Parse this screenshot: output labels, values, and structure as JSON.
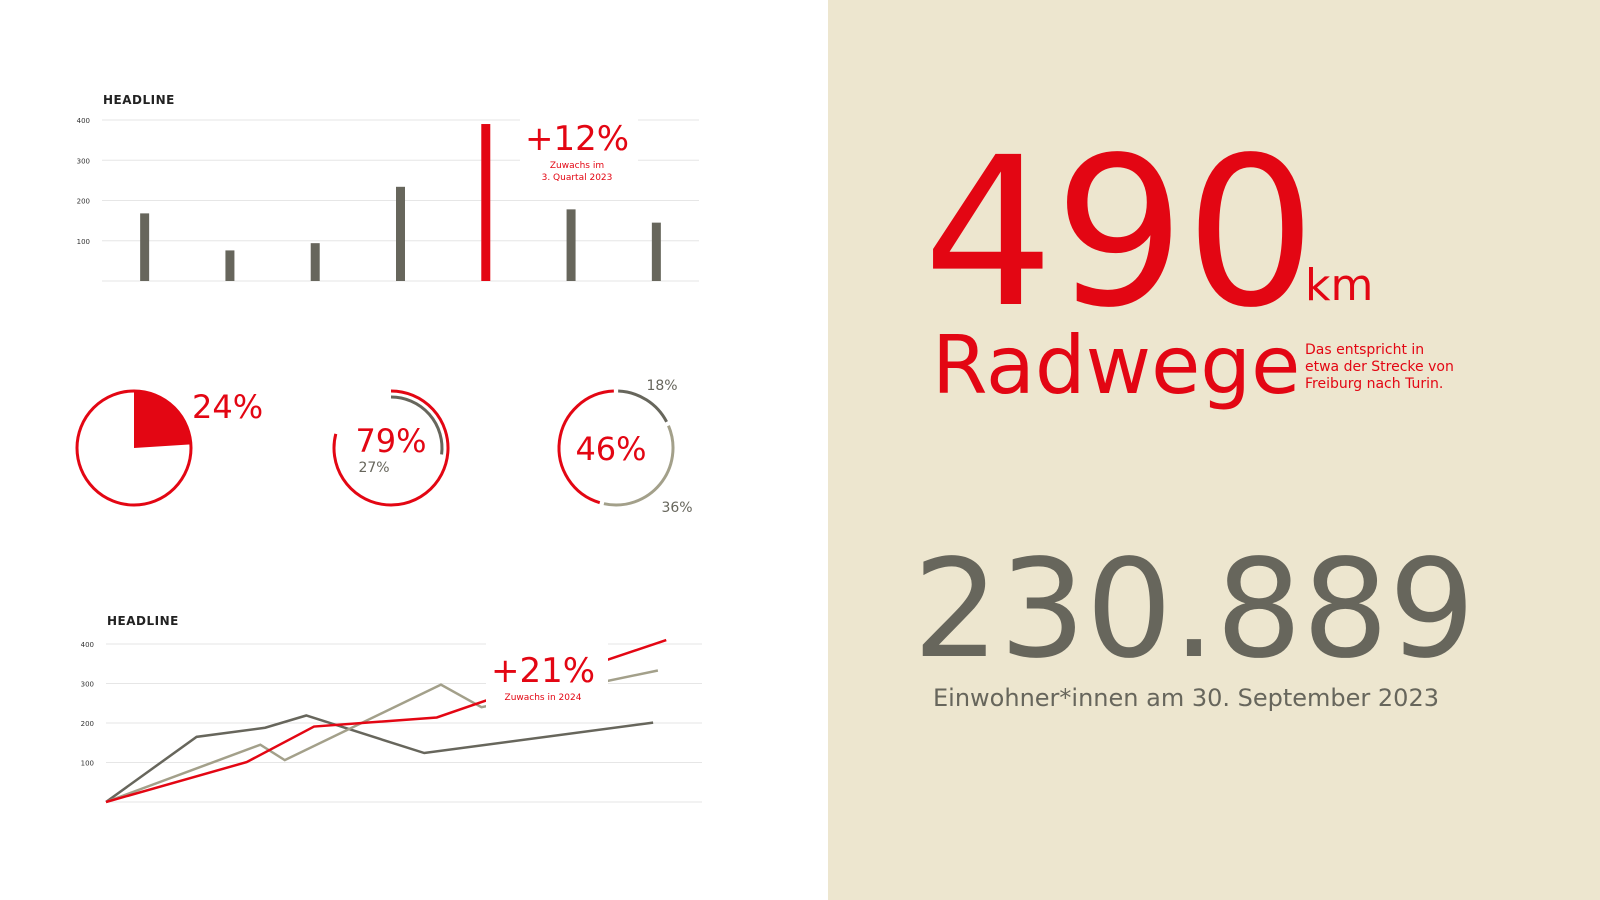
{
  "chart_data": [
    {
      "type": "bar",
      "title": "HEADLINE",
      "categories": [
        null,
        null,
        null,
        null,
        null,
        null,
        null
      ],
      "values": [
        168,
        76,
        94,
        234,
        390,
        178,
        145
      ],
      "colors": [
        "#67665c",
        "#67665c",
        "#67665c",
        "#67665c",
        "#e30613",
        "#67665c",
        "#67665c"
      ],
      "ylim": [
        0,
        400
      ],
      "yticks": [
        100,
        200,
        300,
        400
      ],
      "grid": true,
      "annotation": {
        "text": "+12%",
        "note": [
          "Zuwachs im",
          "3. Quartal 2023"
        ]
      }
    },
    {
      "type": "pie",
      "values": [
        24
      ],
      "value_labels": [
        "24%"
      ],
      "colors": [
        "#e30613"
      ]
    },
    {
      "type": "donut",
      "values": [
        79,
        27
      ],
      "value_labels": [
        "79%",
        "27%"
      ],
      "colors": [
        "#e30613",
        "#67665c"
      ]
    },
    {
      "type": "donut",
      "values": [
        18,
        36,
        46
      ],
      "value_labels": [
        "18%",
        "36%",
        "46%"
      ],
      "colors": [
        "#67665c",
        "#a3a08a",
        "#e30613"
      ]
    },
    {
      "type": "line",
      "title": "HEADLINE",
      "xlim": [
        0,
        100
      ],
      "ylim": [
        0,
        400
      ],
      "yticks": [
        100,
        200,
        300,
        400
      ],
      "grid": true,
      "series": [
        {
          "color": "#67665c",
          "x": [
            0,
            15.2,
            26.7,
            33.6,
            53.4,
            91.8
          ],
          "values": [
            0,
            165,
            188,
            219,
            124,
            201
          ]
        },
        {
          "color": "#a3a08a",
          "x": [
            0,
            25.9,
            30.0,
            56.2,
            63.0,
            92.6
          ],
          "values": [
            0,
            145,
            106,
            297,
            240,
            333
          ]
        },
        {
          "color": "#e30613",
          "x": [
            0,
            23.6,
            34.9,
            55.5,
            63.0,
            94.0
          ],
          "values": [
            0,
            101,
            191,
            214,
            253,
            410
          ]
        }
      ],
      "annotation": {
        "text": "+21%",
        "note": [
          "Zuwachs in 2024"
        ]
      }
    }
  ],
  "facts": {
    "big_number": "490",
    "unit": "km",
    "label": "Radwege",
    "note": [
      "Das entspricht in",
      "etwa der Strecke von",
      "Freiburg nach Turin."
    ],
    "population": "230.889",
    "population_caption": "Einwohner*innen am 30. September 2023"
  }
}
